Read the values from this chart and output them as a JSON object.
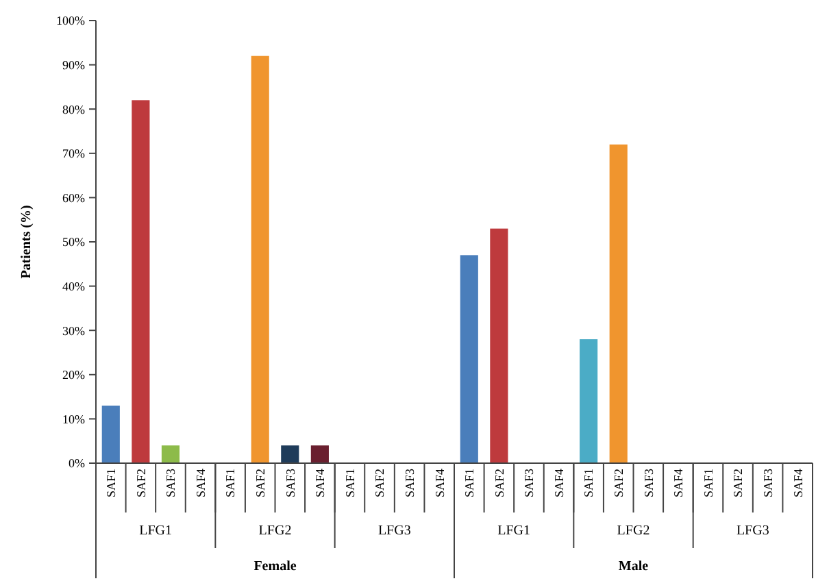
{
  "chart_data": {
    "type": "bar",
    "ylabel": "Patients (%)",
    "categories": [
      "SAF1",
      "SAF2",
      "SAF3",
      "SAF4",
      "SAF1",
      "SAF2",
      "SAF3",
      "SAF4",
      "SAF1",
      "SAF2",
      "SAF3",
      "SAF4",
      "SAF1",
      "SAF2",
      "SAF3",
      "SAF4",
      "SAF1",
      "SAF2",
      "SAF3",
      "SAF4",
      "SAF1",
      "SAF2",
      "SAF3",
      "SAF4"
    ],
    "values": [
      13,
      82,
      4,
      0,
      0,
      92,
      4,
      4,
      0,
      0,
      0,
      0,
      47,
      53,
      0,
      0,
      28,
      72,
      0,
      0,
      0,
      0,
      0,
      0
    ],
    "colors": [
      "#4a7ebb",
      "#be3a3d",
      "#8dbb4a",
      "#7e62a1",
      "#4a7ebb",
      "#f0952e",
      "#1f3c5a",
      "#6a1f2f",
      "#4a7ebb",
      "#be3a3d",
      "#8dbb4a",
      "#7e62a1",
      "#4a7ebb",
      "#be3a3d",
      "#8dbb4a",
      "#7e62a1",
      "#4bacc6",
      "#f0952e",
      "#1f3c5a",
      "#6a1f2f",
      "#4bacc6",
      "#f0952e",
      "#1f3c5a",
      "#6a1f2f"
    ],
    "ylim": [
      0,
      100
    ],
    "yticks": [
      {
        "value": 0,
        "label": "0%"
      },
      {
        "value": 10,
        "label": "10%"
      },
      {
        "value": 20,
        "label": "20%"
      },
      {
        "value": 30,
        "label": "30%"
      },
      {
        "value": 40,
        "label": "40%"
      },
      {
        "value": 50,
        "label": "50%"
      },
      {
        "value": 60,
        "label": "60%"
      },
      {
        "value": 70,
        "label": "70%"
      },
      {
        "value": 80,
        "label": "80%"
      },
      {
        "value": 90,
        "label": "90%"
      },
      {
        "value": 100,
        "label": "100%"
      }
    ],
    "annotations": [
      "LFG1",
      "LFG2",
      "LFG3",
      "LFG1",
      "LFG2",
      "LFG3",
      "Female",
      "Male"
    ],
    "grid": false
  }
}
